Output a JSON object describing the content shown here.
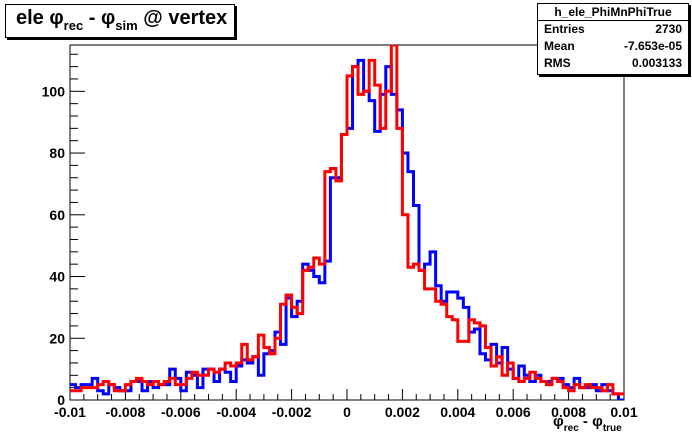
{
  "title": {
    "main": "ele ",
    "phi1": "φ",
    "rec": "rec",
    "minus": " - ",
    "phi2": "φ",
    "sim": "sim",
    "tail": " @ vertex"
  },
  "stats": {
    "name": "h_ele_PhiMnPhiTrue",
    "rows": [
      {
        "label": "Entries",
        "value": "2730"
      },
      {
        "label": "Mean",
        "value": "-7.653e-05"
      },
      {
        "label": "RMS",
        "value": "0.003133"
      }
    ]
  },
  "xaxis_title": {
    "phi1": "φ",
    "rec": "rec",
    "minus": " - ",
    "phi2": "φ",
    "true": "true"
  },
  "colors": {
    "blue": "#0000ff",
    "red": "#ff0000",
    "axis": "#000000"
  },
  "chart_data": {
    "type": "line",
    "xlim": [
      -0.01,
      0.01
    ],
    "ylim": [
      0,
      115
    ],
    "xticks": [
      -0.01,
      -0.008,
      -0.006,
      -0.004,
      -0.002,
      0,
      0.002,
      0.004,
      0.006,
      0.008,
      0.01
    ],
    "xtick_labels": [
      "-0.01",
      "-0.008",
      "-0.006",
      "-0.004",
      "-0.002",
      "0",
      "0.002",
      "0.004",
      "0.006",
      "0.008",
      "0.01"
    ],
    "yticks": [
      0,
      20,
      40,
      60,
      80,
      100
    ],
    "ytick_labels": [
      "0",
      "20",
      "40",
      "60",
      "80",
      "100"
    ],
    "bin_edges_range": [
      -0.01,
      0.01
    ],
    "nbins": 100,
    "series": [
      {
        "color": "blue",
        "values": [
          5,
          4,
          5,
          5,
          7,
          3,
          2,
          5,
          4,
          3,
          3,
          6,
          6,
          3,
          6,
          4,
          5,
          5,
          10,
          7,
          3,
          9,
          8,
          4,
          10,
          10,
          6,
          10,
          9,
          6,
          11,
          13,
          12,
          14,
          8,
          15,
          16,
          22,
          18,
          33,
          27,
          32,
          44,
          42,
          40,
          38,
          45,
          72,
          72,
          86,
          88,
          108,
          110,
          100,
          97,
          87,
          99,
          108,
          99,
          94,
          80,
          74,
          63,
          42,
          44,
          48,
          37,
          32,
          35,
          35,
          33,
          30,
          22,
          23,
          15,
          13,
          18,
          12,
          17,
          10,
          7,
          11,
          8,
          6,
          8,
          6,
          6,
          7,
          7,
          5,
          4,
          7,
          4,
          4,
          5,
          3,
          5,
          3,
          2,
          0
        ]
      },
      {
        "color": "red",
        "values": [
          3,
          3,
          4,
          4,
          4,
          5,
          6,
          5,
          3,
          3,
          5,
          6,
          7,
          6,
          5,
          6,
          5,
          6,
          7,
          5,
          5,
          7,
          9,
          8,
          8,
          10,
          9,
          10,
          12,
          11,
          12,
          18,
          13,
          14,
          21,
          17,
          15,
          20,
          31,
          34,
          30,
          28,
          42,
          43,
          46,
          44,
          74,
          75,
          71,
          86,
          105,
          108,
          99,
          100,
          110,
          102,
          88,
          100,
          115,
          88,
          60,
          43,
          44,
          42,
          36,
          36,
          32,
          31,
          27,
          26,
          19,
          19,
          26,
          25,
          24,
          17,
          11,
          14,
          8,
          12,
          7,
          6,
          7,
          9,
          7,
          6,
          5,
          7,
          6,
          4,
          3,
          5,
          4,
          5,
          4,
          4,
          3,
          5,
          2,
          2
        ]
      }
    ]
  }
}
